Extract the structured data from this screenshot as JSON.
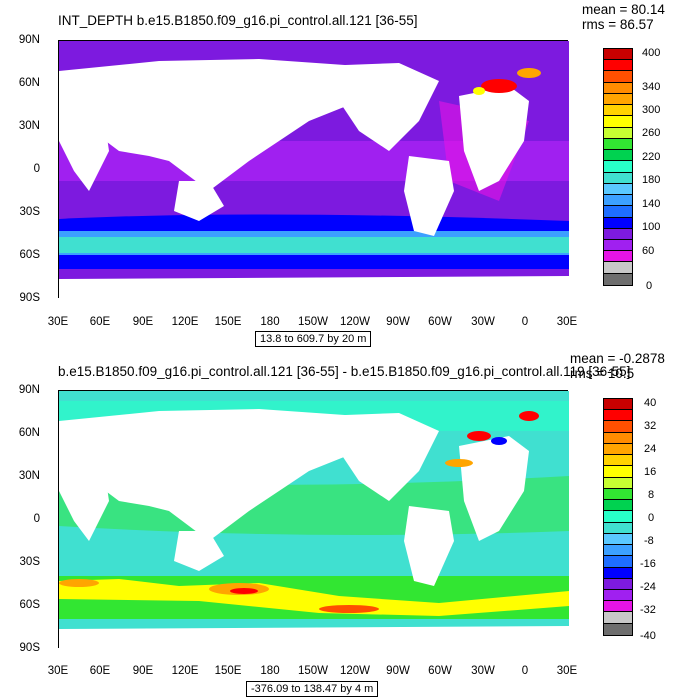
{
  "chart_data": [
    {
      "type": "heatmap",
      "title": "INT_DEPTH b.e15.B1850.f09_g16.pi_control.all.121 [36-55]",
      "stats": [
        "mean = 80.14",
        "rms = 86.57"
      ],
      "lat_ticks": [
        "90N",
        "60N",
        "30N",
        "0",
        "30S",
        "60S",
        "90S"
      ],
      "lon_ticks": [
        "30E",
        "60E",
        "90E",
        "120E",
        "150E",
        "180",
        "150W",
        "120W",
        "90W",
        "60W",
        "30W",
        "0",
        "30E"
      ],
      "range_label": "13.8 to 609.7 by 20 m",
      "colorbar_labels": [
        "400",
        "340",
        "300",
        "260",
        "220",
        "180",
        "140",
        "100",
        "60",
        "0"
      ],
      "colors": [
        "#6e6e6e",
        "#c8c8c8",
        "#e614e6",
        "#a020f0",
        "#7d1adf",
        "#0000ff",
        "#1e6eff",
        "#3ca0ff",
        "#5ac8ff",
        "#40e0d0",
        "#28ffc8",
        "#00d250",
        "#32e632",
        "#c8ff32",
        "#ffff00",
        "#ffd200",
        "#ffa500",
        "#ff8c00",
        "#ff5000",
        "#ff0000",
        "#c80000"
      ]
    },
    {
      "type": "heatmap",
      "title": "b.e15.B1850.f09_g16.pi_control.all.121 [36-55] - b.e15.B1850.f09_g16.pi_control.all.119 [36-55]",
      "stats": [
        "mean = -0.2878",
        "rms = 10.5"
      ],
      "lat_ticks": [
        "90N",
        "60N",
        "30N",
        "0",
        "30S",
        "60S",
        "90S"
      ],
      "lon_ticks": [
        "30E",
        "60E",
        "90E",
        "120E",
        "150E",
        "180",
        "150W",
        "120W",
        "90W",
        "60W",
        "30W",
        "0",
        "30E"
      ],
      "range_label": "-376.09 to 138.47 by 4 m",
      "colorbar_labels": [
        "40",
        "32",
        "24",
        "16",
        "8",
        "0",
        "-8",
        "-16",
        "-24",
        "-32",
        "-40"
      ],
      "colors": [
        "#6e6e6e",
        "#c8c8c8",
        "#e614e6",
        "#a020f0",
        "#7d1adf",
        "#0000ff",
        "#1e6eff",
        "#3ca0ff",
        "#5ac8ff",
        "#40e0d0",
        "#28ffc8",
        "#00d250",
        "#32e632",
        "#c8ff32",
        "#ffff00",
        "#ffd200",
        "#ffa500",
        "#ff8c00",
        "#ff5000",
        "#ff0000",
        "#c80000"
      ]
    }
  ]
}
